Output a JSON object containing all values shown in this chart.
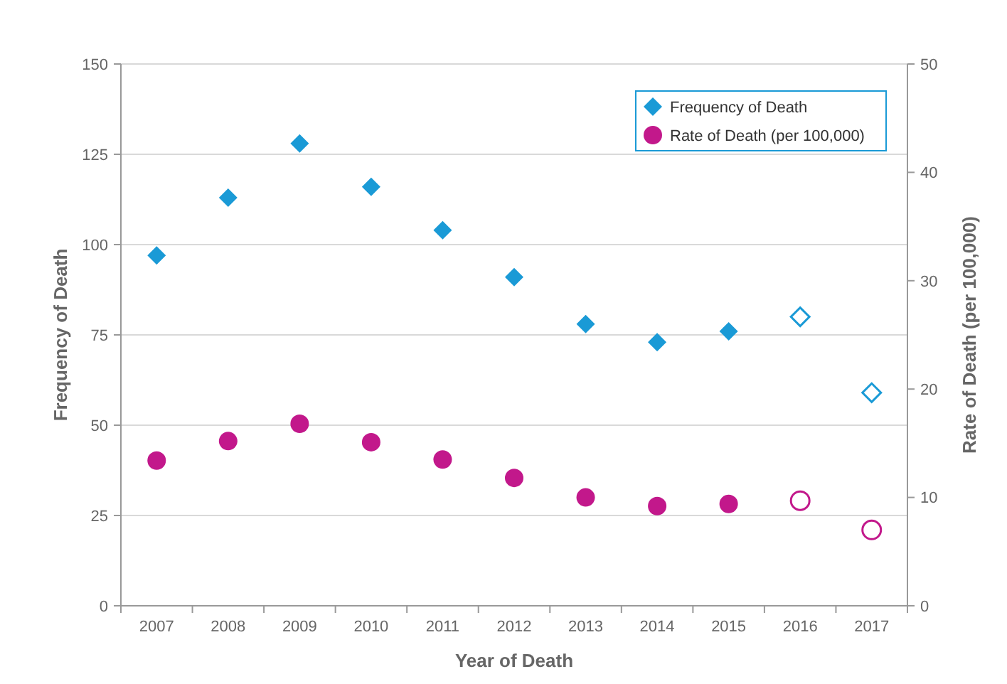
{
  "chart_data": {
    "type": "scatter",
    "xlabel": "Year of Death",
    "ylabel": "Frequency of Death",
    "y2label": "Rate of Death (per 100,000)",
    "categories": [
      "2007",
      "2008",
      "2009",
      "2010",
      "2011",
      "2012",
      "2013",
      "2014",
      "2015",
      "2016",
      "2017"
    ],
    "ylim": [
      0,
      150
    ],
    "yticks": [
      0,
      25,
      50,
      75,
      100,
      125,
      150
    ],
    "y2lim": [
      0,
      50
    ],
    "y2ticks": [
      0,
      10,
      20,
      30,
      40,
      50
    ],
    "grid": "y",
    "legend": "top right",
    "series": [
      {
        "name": "Frequency of Death",
        "color": "#1a9ad6",
        "marker": "diamond",
        "values": [
          97,
          113,
          128,
          116,
          104,
          91,
          78,
          73,
          76,
          null,
          null
        ]
      },
      {
        "name": "Rate of Death (per 100,000)",
        "color": "#c2188b",
        "marker": "circle",
        "axis": "y2",
        "values": [
          13.4,
          15.2,
          16.8,
          15.1,
          13.5,
          11.8,
          10.0,
          9.2,
          9.4,
          null,
          null
        ]
      },
      {
        "color": "#1a9ad6",
        "marker": "diamond",
        "values": [
          null,
          null,
          null,
          null,
          null,
          null,
          null,
          null,
          null,
          80,
          59
        ]
      },
      {
        "color": "#c2188b",
        "marker": "circle",
        "axis": "y2",
        "values": [
          null,
          null,
          null,
          null,
          null,
          null,
          null,
          null,
          null,
          9.7,
          7.0
        ]
      }
    ]
  }
}
